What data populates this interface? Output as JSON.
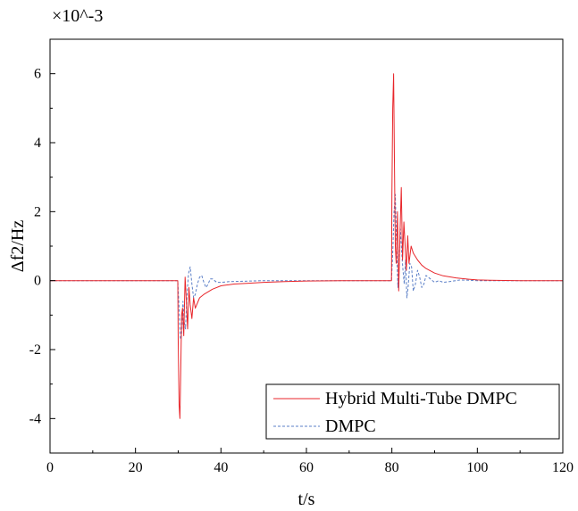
{
  "chart_data": {
    "type": "line",
    "title": "",
    "xlabel": "t/s",
    "ylabel": "Δf2/Hz",
    "y_multiplier": "×10^-3",
    "xlim": [
      0,
      120
    ],
    "ylim": [
      -5,
      7
    ],
    "x_ticks": [
      "0",
      "20",
      "40",
      "60",
      "80",
      "100",
      "120"
    ],
    "y_ticks": [
      "-4",
      "-2",
      "0",
      "2",
      "4",
      "6"
    ],
    "grid": false,
    "legend_position": "bottom-right",
    "series": [
      {
        "name": "Hybrid Multi-Tube DMPC",
        "color": "#e8262b",
        "style": "solid",
        "x": [
          0,
          29.9,
          30.0,
          30.2,
          30.4,
          30.6,
          30.8,
          31.0,
          31.3,
          31.6,
          31.9,
          32.2,
          32.5,
          32.8,
          33.2,
          33.6,
          34.0,
          35.0,
          36.0,
          38.0,
          40.0,
          43.0,
          46.0,
          50.0,
          55.0,
          60.0,
          70.0,
          79.9,
          80.0,
          80.2,
          80.4,
          80.6,
          80.8,
          81.0,
          81.3,
          81.6,
          81.9,
          82.2,
          82.5,
          82.8,
          83.1,
          83.4,
          83.7,
          84.0,
          84.5,
          85.0,
          86.0,
          87.0,
          88.0,
          90.0,
          92.0,
          95.0,
          98.0,
          100.0,
          103.0,
          110.0,
          120.0
        ],
        "y": [
          0,
          0,
          -1.8,
          -3.6,
          -4.0,
          -2.5,
          -1.0,
          -0.8,
          -1.6,
          0.1,
          -0.6,
          -1.4,
          -0.2,
          -0.7,
          -1.1,
          -0.5,
          -0.8,
          -0.5,
          -0.4,
          -0.25,
          -0.15,
          -0.1,
          -0.08,
          -0.05,
          -0.03,
          -0.01,
          0,
          0,
          2.5,
          5.0,
          6.0,
          3.5,
          1.0,
          0.5,
          2.0,
          -0.3,
          1.4,
          2.7,
          0.6,
          1.7,
          1.0,
          0.3,
          1.3,
          0.5,
          1.0,
          0.8,
          0.6,
          0.45,
          0.35,
          0.22,
          0.14,
          0.08,
          0.04,
          0.02,
          0.01,
          0,
          0
        ]
      },
      {
        "name": "DMPC",
        "color": "#5b7fc7",
        "style": "dashed",
        "x": [
          0,
          29.9,
          30.2,
          30.5,
          30.8,
          31.1,
          31.4,
          31.7,
          32.0,
          32.4,
          32.8,
          33.2,
          33.6,
          34.0,
          34.5,
          35.0,
          35.5,
          36.0,
          36.5,
          37.0,
          37.5,
          38.0,
          39.0,
          40.0,
          42.0,
          45.0,
          50.0,
          60.0,
          79.9,
          80.2,
          80.5,
          80.8,
          81.1,
          81.4,
          81.7,
          82.0,
          82.3,
          82.6,
          82.9,
          83.2,
          83.5,
          83.8,
          84.2,
          84.6,
          85.0,
          85.5,
          86.0,
          86.5,
          87.0,
          87.5,
          88.0,
          89.0,
          90.0,
          91.0,
          92.0,
          94.0,
          96.0,
          100.0,
          110.0,
          120.0
        ],
        "y": [
          0,
          0,
          -0.8,
          -1.7,
          -1.6,
          -0.6,
          -1.2,
          -1.4,
          -0.5,
          0.2,
          0.4,
          -0.1,
          -0.5,
          -0.4,
          -0.1,
          0.1,
          0.15,
          -0.05,
          -0.2,
          -0.1,
          0.05,
          0.05,
          -0.05,
          -0.05,
          -0.03,
          -0.02,
          0,
          0,
          0,
          0.8,
          2.0,
          2.5,
          1.0,
          -0.2,
          0.5,
          1.5,
          0.8,
          0.3,
          -0.1,
          0.6,
          -0.5,
          -0.2,
          0.5,
          0.4,
          -0.3,
          -0.1,
          0.3,
          0.1,
          -0.2,
          -0.1,
          0.15,
          0.05,
          -0.05,
          0.0,
          -0.05,
          -0.02,
          0.02,
          0,
          0,
          0
        ]
      }
    ]
  }
}
